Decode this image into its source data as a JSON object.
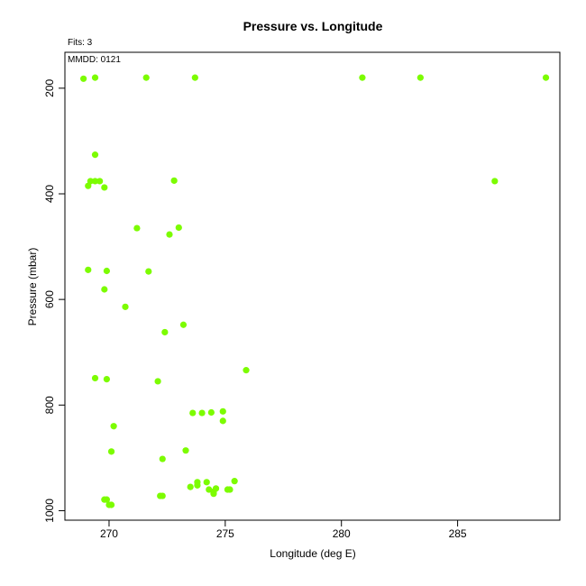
{
  "chart_data": {
    "type": "scatter",
    "title": "Pressure vs. Longitude",
    "xlabel": "Longitude (deg E)",
    "ylabel": "Pressure (mbar)",
    "annotations": {
      "fits": "Fits: 3",
      "mmdd": "MMDD: 0121"
    },
    "xlim": [
      268.1,
      289.4
    ],
    "ylim": [
      1018,
      132
    ],
    "x_ticks": [
      270,
      275,
      280,
      285
    ],
    "y_ticks": [
      200,
      400,
      600,
      800,
      1000
    ],
    "point_color": "#7cfc00",
    "grid": false,
    "points": [
      {
        "x": 268.9,
        "y": 182
      },
      {
        "x": 269.4,
        "y": 180
      },
      {
        "x": 271.6,
        "y": 180
      },
      {
        "x": 273.7,
        "y": 180
      },
      {
        "x": 280.9,
        "y": 180
      },
      {
        "x": 283.4,
        "y": 180
      },
      {
        "x": 288.8,
        "y": 180
      },
      {
        "x": 269.4,
        "y": 326
      },
      {
        "x": 269.2,
        "y": 376
      },
      {
        "x": 269.4,
        "y": 376
      },
      {
        "x": 269.6,
        "y": 376
      },
      {
        "x": 269.1,
        "y": 385
      },
      {
        "x": 269.8,
        "y": 388
      },
      {
        "x": 272.8,
        "y": 375
      },
      {
        "x": 286.6,
        "y": 376
      },
      {
        "x": 271.2,
        "y": 465
      },
      {
        "x": 273.0,
        "y": 464
      },
      {
        "x": 272.6,
        "y": 477
      },
      {
        "x": 269.1,
        "y": 544
      },
      {
        "x": 269.9,
        "y": 546
      },
      {
        "x": 271.7,
        "y": 547
      },
      {
        "x": 269.8,
        "y": 581
      },
      {
        "x": 270.7,
        "y": 614
      },
      {
        "x": 273.2,
        "y": 648
      },
      {
        "x": 272.4,
        "y": 662
      },
      {
        "x": 275.9,
        "y": 734
      },
      {
        "x": 269.4,
        "y": 749
      },
      {
        "x": 269.9,
        "y": 751
      },
      {
        "x": 272.1,
        "y": 755
      },
      {
        "x": 273.6,
        "y": 815
      },
      {
        "x": 274.0,
        "y": 815
      },
      {
        "x": 274.4,
        "y": 814
      },
      {
        "x": 274.9,
        "y": 812
      },
      {
        "x": 274.9,
        "y": 830
      },
      {
        "x": 270.2,
        "y": 840
      },
      {
        "x": 273.3,
        "y": 886
      },
      {
        "x": 270.1,
        "y": 888
      },
      {
        "x": 272.3,
        "y": 902
      },
      {
        "x": 275.4,
        "y": 944
      },
      {
        "x": 273.8,
        "y": 946
      },
      {
        "x": 274.2,
        "y": 946
      },
      {
        "x": 273.8,
        "y": 952
      },
      {
        "x": 273.5,
        "y": 955
      },
      {
        "x": 274.6,
        "y": 958
      },
      {
        "x": 274.3,
        "y": 960
      },
      {
        "x": 275.1,
        "y": 960
      },
      {
        "x": 275.2,
        "y": 960
      },
      {
        "x": 274.5,
        "y": 964
      },
      {
        "x": 274.5,
        "y": 968
      },
      {
        "x": 272.2,
        "y": 972
      },
      {
        "x": 272.3,
        "y": 972
      },
      {
        "x": 269.8,
        "y": 979
      },
      {
        "x": 269.9,
        "y": 979
      },
      {
        "x": 270.0,
        "y": 989
      },
      {
        "x": 270.1,
        "y": 989
      }
    ]
  }
}
